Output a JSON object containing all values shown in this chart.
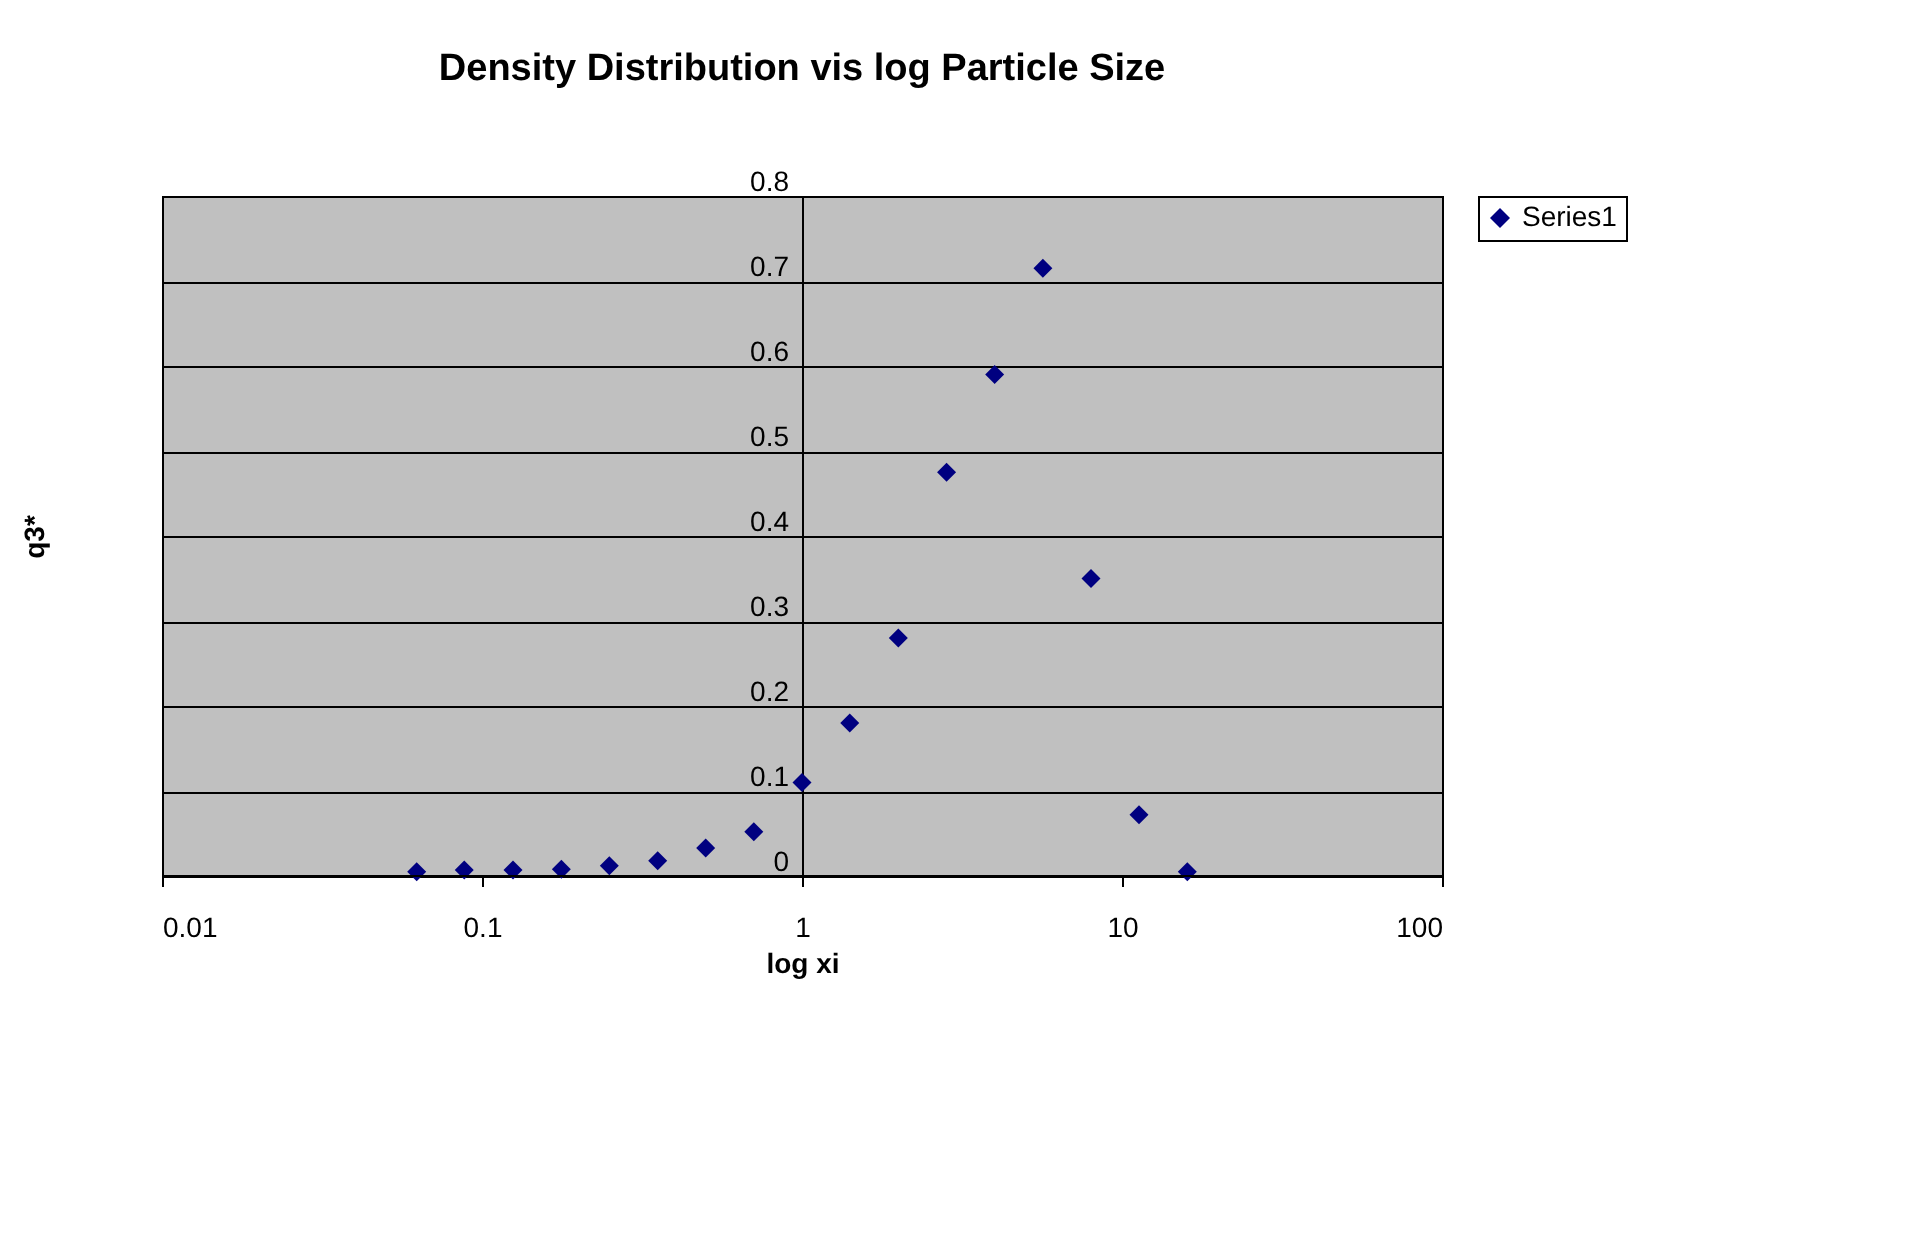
{
  "chart_data": {
    "type": "scatter",
    "title": "Density Distribution vis log Particle Size",
    "xlabel": "log xi",
    "ylabel": "q3*",
    "x": [
      0.0625,
      0.088,
      0.125,
      0.177,
      0.25,
      0.354,
      0.5,
      0.707,
      1,
      1.41,
      2,
      2.83,
      4,
      5.66,
      8,
      11.3,
      16
    ],
    "series": [
      {
        "name": "Series1",
        "color": "#000080",
        "values": [
          0.005,
          0.007,
          0.007,
          0.008,
          0.012,
          0.018,
          0.033,
          0.052,
          0.11,
          0.18,
          0.28,
          0.475,
          0.59,
          0.715,
          0.35,
          0.072,
          0.005
        ]
      }
    ],
    "log": "x",
    "xlim": [
      0.01,
      100
    ],
    "xticks": [
      0.01,
      0.1,
      1,
      10,
      100
    ],
    "ylim": [
      0,
      0.8
    ],
    "yticks": [
      0,
      0.1,
      0.2,
      0.3,
      0.4,
      0.5,
      0.6,
      0.7,
      0.8
    ],
    "grid": "y",
    "legend": "right",
    "marker": "diamond"
  }
}
